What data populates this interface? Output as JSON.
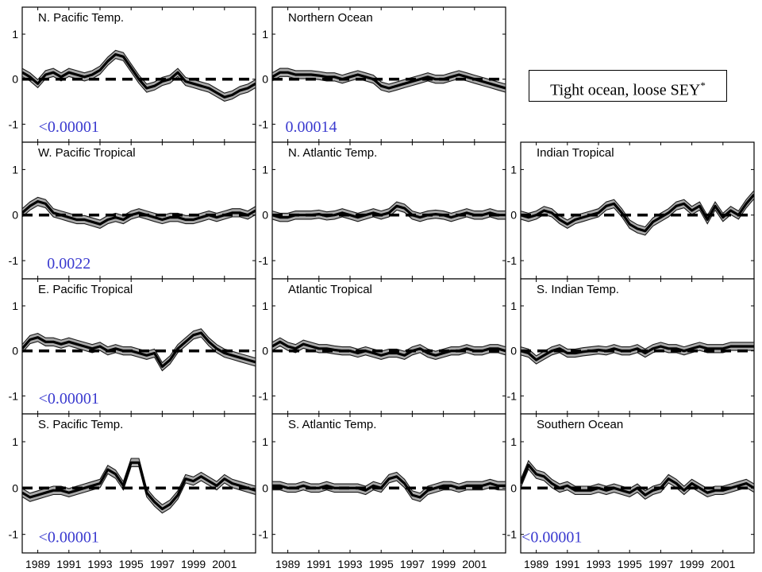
{
  "legend": {
    "text": "Tight ocean, loose SEY",
    "superscript": "*"
  },
  "chart_data": {
    "type": "line",
    "layout": "grid of small multiples, 4 rows x 3 columns",
    "x_ticks": [
      1989,
      1991,
      1993,
      1995,
      1997,
      1999,
      2001
    ],
    "x_range": [
      1988,
      2003
    ],
    "y_ticks": [
      1,
      0,
      -1
    ],
    "y_range": [
      -1.4,
      1.6
    ],
    "reference_line": {
      "y": 0,
      "style": "dashed"
    },
    "band_halfwidth": 0.09,
    "colors": {
      "band": "#a9a9a9",
      "line": "#000000",
      "p_value": "#3a3acf"
    },
    "panels": [
      {
        "id": "n-pacific-temp",
        "row": 0,
        "col": 0,
        "title": "N. Pacific Temp.",
        "p_value": "<0.00001",
        "x": [
          1988.0,
          1988.5,
          1989.0,
          1989.5,
          1990.0,
          1990.5,
          1991.0,
          1991.5,
          1992.0,
          1992.5,
          1993.0,
          1993.5,
          1994.0,
          1994.5,
          1995.0,
          1995.5,
          1996.0,
          1996.5,
          1997.0,
          1997.5,
          1998.0,
          1998.5,
          1999.0,
          1999.5,
          2000.0,
          2000.5,
          2001.0,
          2001.5,
          2002.0,
          2002.5,
          2003.0
        ],
        "y": [
          0.15,
          0.05,
          -0.1,
          0.1,
          0.15,
          0.05,
          0.15,
          0.1,
          0.05,
          0.1,
          0.2,
          0.4,
          0.55,
          0.5,
          0.25,
          0.0,
          -0.2,
          -0.15,
          -0.05,
          0.0,
          0.15,
          -0.05,
          -0.1,
          -0.15,
          -0.2,
          -0.3,
          -0.4,
          -0.35,
          -0.25,
          -0.2,
          -0.1
        ]
      },
      {
        "id": "northern-ocean",
        "row": 0,
        "col": 1,
        "title": "Northern Ocean",
        "p_value": "0.00014",
        "x": [
          1988.0,
          1988.5,
          1989.0,
          1989.5,
          1990.0,
          1990.5,
          1991.0,
          1991.5,
          1992.0,
          1992.5,
          1993.0,
          1993.5,
          1994.0,
          1994.5,
          1995.0,
          1995.5,
          1996.0,
          1996.5,
          1997.0,
          1997.5,
          1998.0,
          1998.5,
          1999.0,
          1999.5,
          2000.0,
          2000.5,
          2001.0,
          2001.5,
          2002.0,
          2002.5,
          2003.0
        ],
        "y": [
          0.05,
          0.15,
          0.15,
          0.1,
          0.1,
          0.1,
          0.08,
          0.05,
          0.05,
          0.0,
          0.05,
          0.1,
          0.05,
          0.0,
          -0.15,
          -0.2,
          -0.15,
          -0.1,
          -0.05,
          0.0,
          0.05,
          0.0,
          0.0,
          0.05,
          0.1,
          0.05,
          0.0,
          -0.05,
          -0.1,
          -0.15,
          -0.2
        ]
      },
      {
        "id": "w-pacific-tropical",
        "row": 1,
        "col": 0,
        "title": "W. Pacific Tropical",
        "p_value": "0.0022",
        "x": [
          1988.0,
          1988.5,
          1989.0,
          1989.5,
          1990.0,
          1990.5,
          1991.0,
          1991.5,
          1992.0,
          1992.5,
          1993.0,
          1993.5,
          1994.0,
          1994.5,
          1995.0,
          1995.5,
          1996.0,
          1996.5,
          1997.0,
          1997.5,
          1998.0,
          1998.5,
          1999.0,
          1999.5,
          2000.0,
          2000.5,
          2001.0,
          2001.5,
          2002.0,
          2002.5,
          2003.0
        ],
        "y": [
          0.05,
          0.2,
          0.3,
          0.25,
          0.05,
          0.0,
          -0.05,
          -0.1,
          -0.1,
          -0.15,
          -0.2,
          -0.1,
          -0.05,
          -0.1,
          0.0,
          0.05,
          0.0,
          -0.05,
          -0.1,
          -0.05,
          -0.05,
          -0.1,
          -0.1,
          -0.05,
          0.0,
          -0.05,
          0.0,
          0.05,
          0.05,
          0.0,
          0.1
        ]
      },
      {
        "id": "n-atlantic-temp",
        "row": 1,
        "col": 1,
        "title": "N. Atlantic Temp.",
        "p_value": "",
        "x": [
          1988.0,
          1988.5,
          1989.0,
          1989.5,
          1990.0,
          1990.5,
          1991.0,
          1991.5,
          1992.0,
          1992.5,
          1993.0,
          1993.5,
          1994.0,
          1994.5,
          1995.0,
          1995.5,
          1996.0,
          1996.5,
          1997.0,
          1997.5,
          1998.0,
          1998.5,
          1999.0,
          1999.5,
          2000.0,
          2000.5,
          2001.0,
          2001.5,
          2002.0,
          2002.5,
          2003.0
        ],
        "y": [
          0.0,
          -0.05,
          -0.05,
          0.0,
          0.0,
          0.0,
          0.02,
          -0.02,
          0.0,
          0.05,
          0.0,
          -0.05,
          0.0,
          0.05,
          0.0,
          0.05,
          0.2,
          0.15,
          0.0,
          -0.05,
          0.0,
          0.02,
          0.0,
          -0.05,
          0.0,
          0.05,
          0.0,
          0.0,
          0.05,
          0.0,
          0.0
        ]
      },
      {
        "id": "indian-tropical",
        "row": 1,
        "col": 2,
        "title": "Indian Tropical",
        "p_value": "",
        "x": [
          1988.0,
          1988.5,
          1989.0,
          1989.5,
          1990.0,
          1990.5,
          1991.0,
          1991.5,
          1992.0,
          1992.5,
          1993.0,
          1993.5,
          1994.0,
          1994.5,
          1995.0,
          1995.5,
          1996.0,
          1996.5,
          1997.0,
          1997.5,
          1998.0,
          1998.5,
          1999.0,
          1999.5,
          2000.0,
          2000.5,
          2001.0,
          2001.5,
          2002.0,
          2002.5,
          2003.0
        ],
        "y": [
          0.0,
          -0.05,
          0.0,
          0.1,
          0.05,
          -0.1,
          -0.2,
          -0.1,
          -0.05,
          0.0,
          0.05,
          0.2,
          0.25,
          0.05,
          -0.2,
          -0.3,
          -0.35,
          -0.15,
          -0.05,
          0.05,
          0.2,
          0.25,
          0.1,
          0.2,
          -0.1,
          0.2,
          -0.05,
          0.1,
          0.0,
          0.25,
          0.45
        ]
      },
      {
        "id": "e-pacific-tropical",
        "row": 2,
        "col": 0,
        "title": "E. Pacific Tropical",
        "p_value": "<0.00001",
        "x": [
          1988.0,
          1988.5,
          1989.0,
          1989.5,
          1990.0,
          1990.5,
          1991.0,
          1991.5,
          1992.0,
          1992.5,
          1993.0,
          1993.5,
          1994.0,
          1994.5,
          1995.0,
          1995.5,
          1996.0,
          1996.5,
          1997.0,
          1997.5,
          1998.0,
          1998.5,
          1999.0,
          1999.5,
          2000.0,
          2000.5,
          2001.0,
          2001.5,
          2002.0,
          2002.5,
          2003.0
        ],
        "y": [
          0.05,
          0.25,
          0.3,
          0.2,
          0.2,
          0.15,
          0.2,
          0.15,
          0.1,
          0.05,
          0.1,
          0.0,
          0.05,
          0.0,
          0.0,
          -0.05,
          -0.1,
          -0.05,
          -0.35,
          -0.2,
          0.05,
          0.2,
          0.35,
          0.4,
          0.2,
          0.05,
          -0.05,
          -0.1,
          -0.15,
          -0.2,
          -0.25
        ]
      },
      {
        "id": "atlantic-tropical",
        "row": 2,
        "col": 1,
        "title": "Atlantic Tropical",
        "p_value": "",
        "x": [
          1988.0,
          1988.5,
          1989.0,
          1989.5,
          1990.0,
          1990.5,
          1991.0,
          1991.5,
          1992.0,
          1992.5,
          1993.0,
          1993.5,
          1994.0,
          1994.5,
          1995.0,
          1995.5,
          1996.0,
          1996.5,
          1997.0,
          1997.5,
          1998.0,
          1998.5,
          1999.0,
          1999.5,
          2000.0,
          2000.5,
          2001.0,
          2001.5,
          2002.0,
          2002.5,
          2003.0
        ],
        "y": [
          0.1,
          0.2,
          0.1,
          0.05,
          0.15,
          0.1,
          0.05,
          0.05,
          0.02,
          0.0,
          0.0,
          -0.05,
          0.0,
          -0.05,
          -0.1,
          -0.05,
          -0.05,
          -0.1,
          0.0,
          0.05,
          -0.05,
          -0.1,
          -0.05,
          0.0,
          0.0,
          0.05,
          0.0,
          0.0,
          0.05,
          0.05,
          0.0
        ]
      },
      {
        "id": "s-indian-temp",
        "row": 2,
        "col": 2,
        "title": "S. Indian Temp.",
        "p_value": "",
        "x": [
          1988.0,
          1988.5,
          1989.0,
          1989.5,
          1990.0,
          1990.5,
          1991.0,
          1991.5,
          1992.0,
          1992.5,
          1993.0,
          1993.5,
          1994.0,
          1994.5,
          1995.0,
          1995.5,
          1996.0,
          1996.5,
          1997.0,
          1997.5,
          1998.0,
          1998.5,
          1999.0,
          1999.5,
          2000.0,
          2000.5,
          2001.0,
          2001.5,
          2002.0,
          2002.5,
          2003.0
        ],
        "y": [
          0.0,
          -0.05,
          -0.2,
          -0.1,
          0.0,
          0.05,
          -0.05,
          -0.05,
          -0.02,
          0.0,
          0.02,
          0.0,
          0.05,
          0.0,
          0.0,
          0.05,
          -0.05,
          0.05,
          0.1,
          0.05,
          0.05,
          0.0,
          0.05,
          0.1,
          0.05,
          0.05,
          0.05,
          0.1,
          0.1,
          0.1,
          0.1
        ]
      },
      {
        "id": "s-pacific-temp",
        "row": 3,
        "col": 0,
        "title": "S. Pacific Temp.",
        "p_value": "<0.00001",
        "x": [
          1988.0,
          1988.5,
          1989.0,
          1989.5,
          1990.0,
          1990.5,
          1991.0,
          1991.5,
          1992.0,
          1992.5,
          1993.0,
          1993.5,
          1994.0,
          1994.5,
          1995.0,
          1995.5,
          1996.0,
          1996.5,
          1997.0,
          1997.5,
          1998.0,
          1998.5,
          1999.0,
          1999.5,
          2000.0,
          2000.5,
          2001.0,
          2001.5,
          2002.0,
          2002.5,
          2003.0
        ],
        "y": [
          -0.1,
          -0.2,
          -0.15,
          -0.1,
          -0.05,
          -0.05,
          -0.1,
          -0.05,
          0.0,
          0.05,
          0.1,
          0.4,
          0.3,
          0.05,
          0.55,
          0.55,
          -0.1,
          -0.3,
          -0.45,
          -0.35,
          -0.15,
          0.2,
          0.15,
          0.25,
          0.15,
          0.05,
          0.2,
          0.1,
          0.05,
          0.0,
          -0.05
        ]
      },
      {
        "id": "s-atlantic-temp",
        "row": 3,
        "col": 1,
        "title": "S. Atlantic Temp.",
        "p_value": "",
        "x": [
          1988.0,
          1988.5,
          1989.0,
          1989.5,
          1990.0,
          1990.5,
          1991.0,
          1991.5,
          1992.0,
          1992.5,
          1993.0,
          1993.5,
          1994.0,
          1994.5,
          1995.0,
          1995.5,
          1996.0,
          1996.5,
          1997.0,
          1997.5,
          1998.0,
          1998.5,
          1999.0,
          1999.5,
          2000.0,
          2000.5,
          2001.0,
          2001.5,
          2002.0,
          2002.5,
          2003.0
        ],
        "y": [
          0.05,
          0.05,
          0.0,
          0.0,
          0.05,
          0.0,
          0.0,
          0.05,
          0.0,
          0.0,
          0.0,
          0.0,
          -0.05,
          0.05,
          0.0,
          0.2,
          0.25,
          0.1,
          -0.15,
          -0.2,
          -0.05,
          0.0,
          0.05,
          0.05,
          0.0,
          0.05,
          0.05,
          0.05,
          0.1,
          0.05,
          0.05
        ]
      },
      {
        "id": "southern-ocean",
        "row": 3,
        "col": 2,
        "title": "Southern Ocean",
        "p_value": "<0.00001",
        "x": [
          1988.0,
          1988.5,
          1989.0,
          1989.5,
          1990.0,
          1990.5,
          1991.0,
          1991.5,
          1992.0,
          1992.5,
          1993.0,
          1993.5,
          1994.0,
          1994.5,
          1995.0,
          1995.5,
          1996.0,
          1996.5,
          1997.0,
          1997.5,
          1998.0,
          1998.5,
          1999.0,
          1999.5,
          2000.0,
          2000.5,
          2001.0,
          2001.5,
          2002.0,
          2002.5,
          2003.0
        ],
        "y": [
          0.1,
          0.5,
          0.3,
          0.25,
          0.1,
          0.0,
          0.05,
          -0.05,
          -0.05,
          -0.05,
          0.0,
          -0.05,
          0.0,
          -0.05,
          -0.1,
          0.0,
          -0.15,
          -0.05,
          0.0,
          0.2,
          0.1,
          -0.05,
          0.1,
          0.0,
          -0.1,
          -0.05,
          -0.05,
          0.0,
          0.05,
          0.1,
          0.0
        ]
      }
    ]
  }
}
